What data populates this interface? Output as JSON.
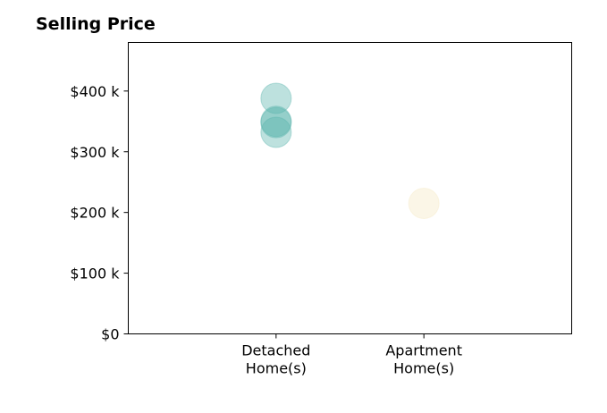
{
  "chart_data": {
    "type": "scatter",
    "title": "Selling Price",
    "xlabel": "",
    "ylabel": "",
    "categories": [
      "Detached Home(s)",
      "Apartment Home(s)"
    ],
    "category_lines": [
      [
        "Detached",
        "Home(s)"
      ],
      [
        "Apartment",
        "Home(s)"
      ]
    ],
    "xlim": [
      -1,
      2
    ],
    "ylim": [
      0,
      480000
    ],
    "yticks": [
      0,
      100000,
      200000,
      300000,
      400000
    ],
    "ytick_labels": [
      "$0",
      "$100 k",
      "$200 k",
      "$300 k",
      "$400 k"
    ],
    "grid": false,
    "legend": "none",
    "points": [
      {
        "category": "Detached Home(s)",
        "value": 388000,
        "color": "#5ab4ac"
      },
      {
        "category": "Detached Home(s)",
        "value": 350000,
        "color": "#5ab4ac"
      },
      {
        "category": "Detached Home(s)",
        "value": 348000,
        "color": "#5ab4ac"
      },
      {
        "category": "Detached Home(s)",
        "value": 332000,
        "color": "#5ab4ac"
      },
      {
        "category": "Apartment Home(s)",
        "value": 215000,
        "color": "#f6e8c3"
      }
    ]
  }
}
